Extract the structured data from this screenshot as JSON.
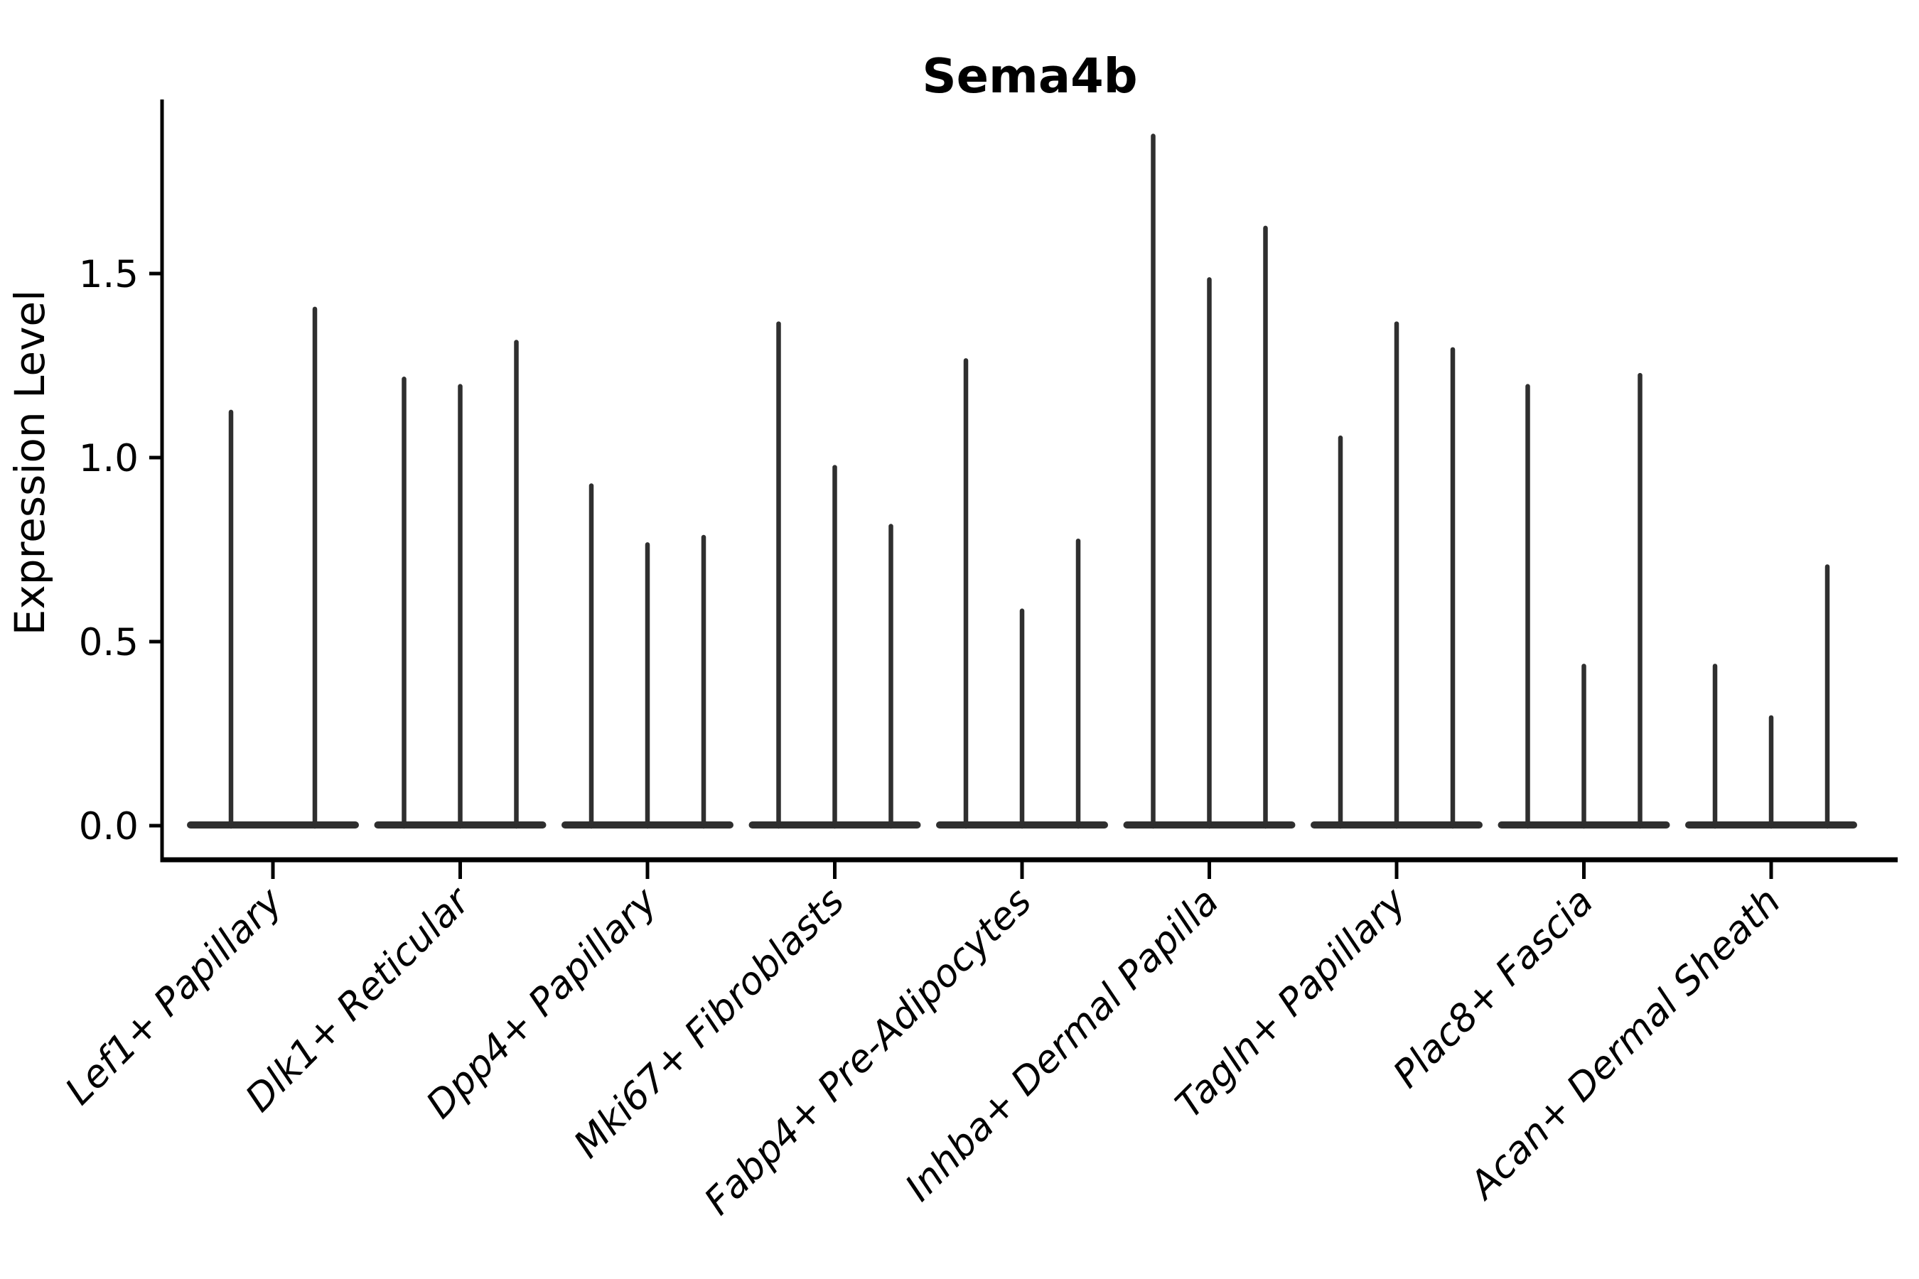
{
  "figure": {
    "title": "Sema4b",
    "y_axis": {
      "label": "Expression Level",
      "tick_labels": [
        "0.0",
        "0.5",
        "1.0",
        "1.5"
      ],
      "tick_values": [
        0,
        0.5,
        1.0,
        1.5
      ],
      "range": [
        0,
        1.97
      ]
    },
    "colors": {
      "violin": "#2f2f2f",
      "axis": "#000000",
      "text": "#000000",
      "background": "#ffffff"
    }
  },
  "chart_data": {
    "type": "violin",
    "title": "Sema4b",
    "xlabel": "",
    "ylabel": "Expression Level",
    "ylim": [
      0,
      1.97
    ],
    "yticks": [
      0,
      0.5,
      1.0,
      1.5
    ],
    "grid": false,
    "legend": "none",
    "baseline_value": 0,
    "shape": "each violin is widest (flat band) at 0 and collapses to a thin spike reaching its peak value",
    "categories": [
      "Lef1+ Papillary",
      "Dlk1+ Reticular",
      "Dpp4+ Papillary",
      "Mki67+ Fibroblasts",
      "Fabp4+ Pre-Adipocytes",
      "Inhba+ Dermal Papilla",
      "Tagln+ Papillary",
      "Plac8+ Fascia",
      "Acan+ Dermal Sheath"
    ],
    "groups": [
      {
        "label": "Lef1+ Papillary",
        "violin_peaks": [
          1.13,
          1.41
        ]
      },
      {
        "label": "Dlk1+ Reticular",
        "violin_peaks": [
          1.22,
          1.2,
          1.32
        ]
      },
      {
        "label": "Dpp4+ Papillary",
        "violin_peaks": [
          0.93,
          0.77,
          0.79
        ]
      },
      {
        "label": "Mki67+ Fibroblasts",
        "violin_peaks": [
          1.37,
          0.98,
          0.82
        ]
      },
      {
        "label": "Fabp4+ Pre-Adipocytes",
        "violin_peaks": [
          1.27,
          0.59,
          0.78
        ]
      },
      {
        "label": "Inhba+ Dermal Papilla",
        "violin_peaks": [
          1.88,
          1.49,
          1.63
        ]
      },
      {
        "label": "Tagln+ Papillary",
        "violin_peaks": [
          1.06,
          1.37,
          1.3
        ]
      },
      {
        "label": "Plac8+ Fascia",
        "violin_peaks": [
          1.2,
          0.44,
          1.23
        ]
      },
      {
        "label": "Acan+ Dermal Sheath",
        "violin_peaks": [
          0.44,
          0.3,
          0.71
        ]
      }
    ]
  }
}
